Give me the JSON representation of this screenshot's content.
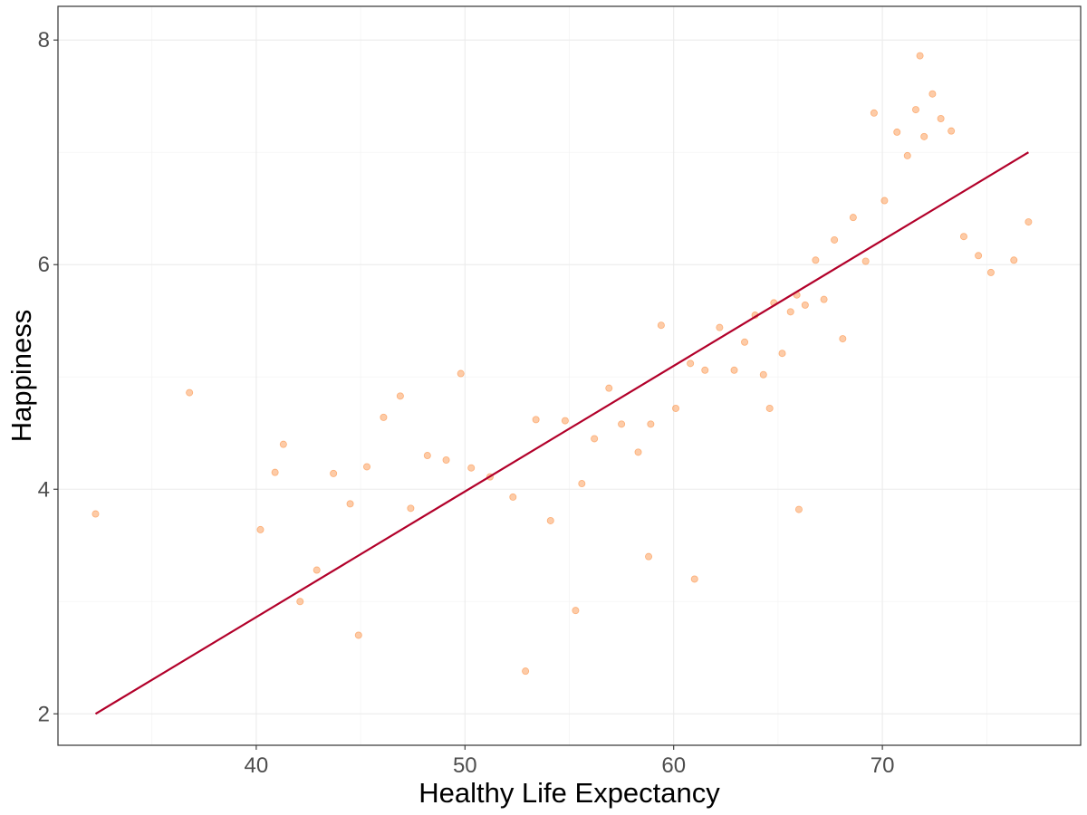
{
  "colors": {
    "points": "#fb8c3c",
    "fit_line": "#b2002a",
    "panel_border": "#333333",
    "grid": "#ebebeb",
    "background": "#ffffff"
  },
  "chart_data": {
    "type": "scatter",
    "title": "",
    "xlabel": "Healthy Life Expectancy",
    "ylabel": "Happiness",
    "xlim": [
      30.5,
      79.5
    ],
    "ylim": [
      1.72,
      8.3
    ],
    "x_ticks": [
      40,
      50,
      60,
      70
    ],
    "x_tick_labels": [
      "40",
      "50",
      "60",
      "70"
    ],
    "y_ticks": [
      2,
      4,
      6,
      8
    ],
    "y_tick_labels": [
      "2",
      "4",
      "6",
      "8"
    ],
    "grid": true,
    "legend": "none",
    "series": [
      {
        "kind": "points",
        "x": [
          32.3,
          36.8,
          40.2,
          40.9,
          41.3,
          42.1,
          42.9,
          43.7,
          44.5,
          44.9,
          45.3,
          46.1,
          46.9,
          47.4,
          48.2,
          49.1,
          49.8,
          50.3,
          51.2,
          52.3,
          52.9,
          53.4,
          54.1,
          54.8,
          55.6,
          56.2,
          56.9,
          57.5,
          58.3,
          58.9,
          59.4,
          60.1,
          60.8,
          61.5,
          62.2,
          62.9,
          63.4,
          63.9,
          64.3,
          64.8,
          65.2,
          65.6,
          65.9,
          66.3,
          66.8,
          67.2,
          67.7,
          68.1,
          68.6,
          69.2,
          69.6,
          70.1,
          70.7,
          71.2,
          71.6,
          72.0,
          72.4,
          72.8,
          73.3,
          73.9,
          74.6,
          75.2,
          76.3,
          77.0,
          55.3,
          58.8,
          61.0,
          64.6,
          66.0,
          71.8
        ],
        "y": [
          3.78,
          4.86,
          3.64,
          4.15,
          4.4,
          3.0,
          3.28,
          4.14,
          3.87,
          2.7,
          4.2,
          4.64,
          4.83,
          3.83,
          4.3,
          4.26,
          5.03,
          4.19,
          4.11,
          3.93,
          2.38,
          4.62,
          3.72,
          4.61,
          4.05,
          4.45,
          4.9,
          4.58,
          4.33,
          4.58,
          5.46,
          4.72,
          5.12,
          5.06,
          5.44,
          5.06,
          5.31,
          5.55,
          5.02,
          5.66,
          5.21,
          5.58,
          5.73,
          5.64,
          6.04,
          5.69,
          6.22,
          5.34,
          6.42,
          6.03,
          7.35,
          6.57,
          7.18,
          6.97,
          7.38,
          7.14,
          7.52,
          7.3,
          7.19,
          6.25,
          6.08,
          5.93,
          6.04,
          6.38,
          2.92,
          3.4,
          3.2,
          4.72,
          3.82,
          7.86
        ]
      },
      {
        "kind": "fit_line",
        "x": [
          32.3,
          77.0
        ],
        "y": [
          2.0,
          7.0
        ]
      }
    ]
  }
}
